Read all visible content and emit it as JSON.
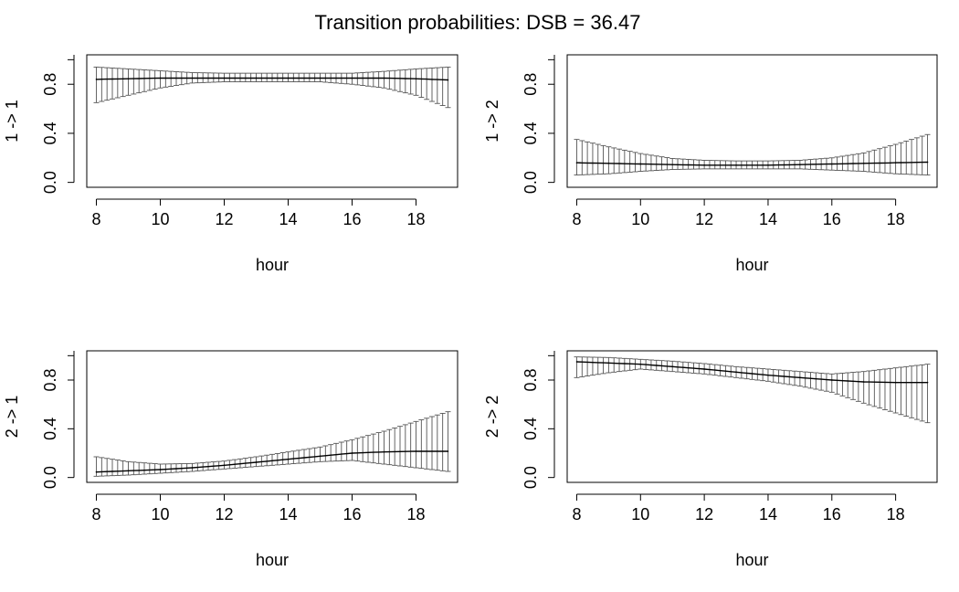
{
  "figure": {
    "title": "Transition probabilities: DSB = 36.47"
  },
  "style": {
    "axis_color": "#000000",
    "mean_color": "#000000",
    "error_bar_color": "#555555"
  },
  "chart_data": [
    {
      "type": "line",
      "panel": "top-left",
      "xlabel": "hour",
      "ylabel": "1 -> 1",
      "xlim": [
        7.7,
        19.3
      ],
      "ylim": [
        -0.04,
        1.04
      ],
      "x_ticks": [
        8,
        10,
        12,
        14,
        16,
        18
      ],
      "y_ticks": [
        0.0,
        0.4,
        0.8
      ],
      "y_tick_labels": [
        "0.0",
        "0.4",
        "0.8"
      ],
      "error_bars": true,
      "series": [
        {
          "x": [
            8,
            9,
            10,
            11,
            12,
            13,
            14,
            15,
            16,
            17,
            18,
            19
          ],
          "y": [
            0.84,
            0.845,
            0.85,
            0.85,
            0.85,
            0.85,
            0.85,
            0.85,
            0.85,
            0.85,
            0.845,
            0.835
          ],
          "lower": [
            0.65,
            0.71,
            0.77,
            0.81,
            0.82,
            0.82,
            0.82,
            0.82,
            0.8,
            0.77,
            0.71,
            0.61
          ],
          "upper": [
            0.94,
            0.925,
            0.91,
            0.895,
            0.89,
            0.89,
            0.89,
            0.89,
            0.89,
            0.905,
            0.925,
            0.94
          ]
        }
      ]
    },
    {
      "type": "line",
      "panel": "top-right",
      "xlabel": "hour",
      "ylabel": "1 -> 2",
      "xlim": [
        7.7,
        19.3
      ],
      "ylim": [
        -0.04,
        1.04
      ],
      "x_ticks": [
        8,
        10,
        12,
        14,
        16,
        18
      ],
      "y_ticks": [
        0.0,
        0.4,
        0.8
      ],
      "y_tick_labels": [
        "0.0",
        "0.4",
        "0.8"
      ],
      "error_bars": true,
      "series": [
        {
          "x": [
            8,
            9,
            10,
            11,
            12,
            13,
            14,
            15,
            16,
            17,
            18,
            19
          ],
          "y": [
            0.16,
            0.155,
            0.15,
            0.145,
            0.14,
            0.14,
            0.14,
            0.145,
            0.15,
            0.155,
            0.16,
            0.165
          ],
          "lower": [
            0.06,
            0.07,
            0.09,
            0.105,
            0.11,
            0.11,
            0.11,
            0.11,
            0.1,
            0.09,
            0.07,
            0.06
          ],
          "upper": [
            0.35,
            0.29,
            0.235,
            0.195,
            0.18,
            0.175,
            0.175,
            0.18,
            0.2,
            0.24,
            0.31,
            0.39
          ]
        }
      ]
    },
    {
      "type": "line",
      "panel": "bottom-left",
      "xlabel": "hour",
      "ylabel": "2 -> 1",
      "xlim": [
        7.7,
        19.3
      ],
      "ylim": [
        -0.04,
        1.04
      ],
      "x_ticks": [
        8,
        10,
        12,
        14,
        16,
        18
      ],
      "y_ticks": [
        0.0,
        0.4,
        0.8
      ],
      "y_tick_labels": [
        "0.0",
        "0.4",
        "0.8"
      ],
      "error_bars": true,
      "series": [
        {
          "x": [
            8,
            9,
            10,
            11,
            12,
            13,
            14,
            15,
            16,
            17,
            18,
            19
          ],
          "y": [
            0.045,
            0.055,
            0.065,
            0.08,
            0.1,
            0.125,
            0.15,
            0.175,
            0.2,
            0.21,
            0.215,
            0.215
          ],
          "lower": [
            0.01,
            0.02,
            0.035,
            0.05,
            0.07,
            0.09,
            0.11,
            0.13,
            0.14,
            0.11,
            0.08,
            0.05
          ],
          "upper": [
            0.17,
            0.13,
            0.11,
            0.115,
            0.135,
            0.17,
            0.21,
            0.25,
            0.31,
            0.38,
            0.46,
            0.54
          ]
        }
      ]
    },
    {
      "type": "line",
      "panel": "bottom-right",
      "xlabel": "hour",
      "ylabel": "2 -> 2",
      "xlim": [
        7.7,
        19.3
      ],
      "ylim": [
        -0.04,
        1.04
      ],
      "x_ticks": [
        8,
        10,
        12,
        14,
        16,
        18
      ],
      "y_ticks": [
        0.0,
        0.4,
        0.8
      ],
      "y_tick_labels": [
        "0.0",
        "0.4",
        "0.8"
      ],
      "error_bars": true,
      "series": [
        {
          "x": [
            8,
            9,
            10,
            11,
            12,
            13,
            14,
            15,
            16,
            17,
            18,
            19
          ],
          "y": [
            0.95,
            0.94,
            0.93,
            0.91,
            0.89,
            0.865,
            0.84,
            0.82,
            0.8,
            0.785,
            0.78,
            0.78
          ],
          "lower": [
            0.82,
            0.86,
            0.89,
            0.87,
            0.85,
            0.82,
            0.79,
            0.75,
            0.7,
            0.61,
            0.53,
            0.45
          ],
          "upper": [
            0.99,
            0.985,
            0.97,
            0.955,
            0.935,
            0.91,
            0.89,
            0.87,
            0.85,
            0.87,
            0.9,
            0.93
          ]
        }
      ]
    }
  ]
}
